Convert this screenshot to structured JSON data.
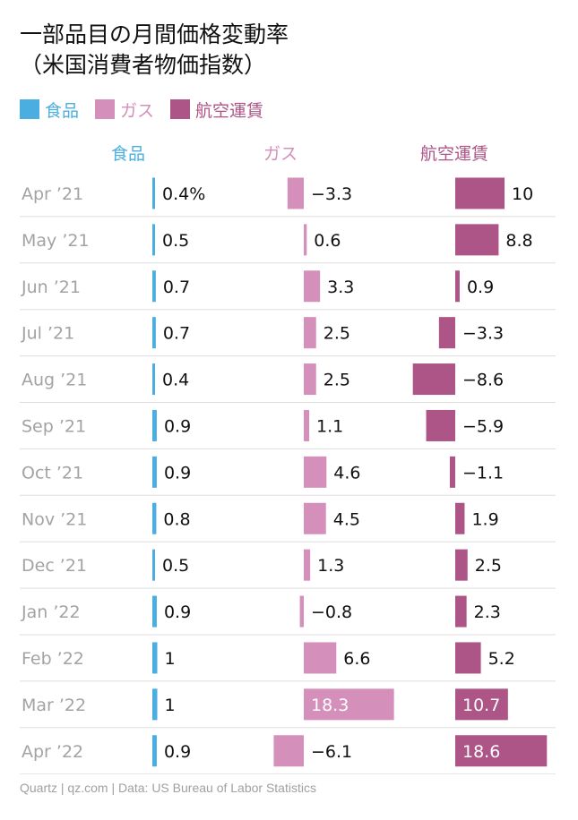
{
  "title": {
    "line1": "一部品目の月間価格変動率",
    "line2": "（米国消費者物価指数）"
  },
  "footer": "Quartz | qz.com | Data: US Bureau of Labor Statistics",
  "colors": {
    "food": "#4aaee0",
    "gas": "#d58fbb",
    "airfare": "#ad5587",
    "label": "#111111",
    "month": "#a3a3a3",
    "grid": "#dddddd",
    "bar_text_inside": "#ffffff"
  },
  "chart_data": {
    "type": "bar",
    "orientation": "horizontal",
    "layout": "small-multiples",
    "categories": [
      "Apr ’21",
      "May ’21",
      "Jun ’21",
      "Jul ’21",
      "Aug ’21",
      "Sep ’21",
      "Oct ’21",
      "Nov ’21",
      "Dec ’21",
      "Jan ’22",
      "Feb ’22",
      "Mar ’22",
      "Apr ’22"
    ],
    "series": [
      {
        "name": "食品",
        "color": "#4aaee0",
        "values": [
          0.4,
          0.5,
          0.7,
          0.7,
          0.4,
          0.9,
          0.9,
          0.8,
          0.5,
          0.9,
          1,
          1,
          0.9
        ],
        "labels": [
          "0.4%",
          "0.5",
          "0.7",
          "0.7",
          "0.4",
          "0.9",
          "0.9",
          "0.8",
          "0.5",
          "0.9",
          "1",
          "1",
          "0.9"
        ]
      },
      {
        "name": "ガス",
        "color": "#d58fbb",
        "values": [
          -3.3,
          0.6,
          3.3,
          2.5,
          2.5,
          1.1,
          4.6,
          4.5,
          1.3,
          -0.8,
          6.6,
          18.3,
          -6.1
        ],
        "labels": [
          "−3.3",
          "0.6",
          "3.3",
          "2.5",
          "2.5",
          "1.1",
          "4.6",
          "4.5",
          "1.3",
          "−0.8",
          "6.6",
          "18.3",
          "−6.1"
        ]
      },
      {
        "name": "航空運賃",
        "color": "#ad5587",
        "values": [
          10,
          8.8,
          0.9,
          -3.3,
          -8.6,
          -5.9,
          -1.1,
          1.9,
          2.5,
          2.3,
          5.2,
          10.7,
          18.6
        ],
        "labels": [
          "10",
          "8.8",
          "0.9",
          "−3.3",
          "−8.6",
          "−5.9",
          "−1.1",
          "1.9",
          "2.5",
          "2.3",
          "5.2",
          "10.7",
          "18.6"
        ]
      }
    ],
    "legend": [
      "食品",
      "ガス",
      "航空運賃"
    ],
    "legend_position": "top-left",
    "unit": "%",
    "grid": true
  }
}
